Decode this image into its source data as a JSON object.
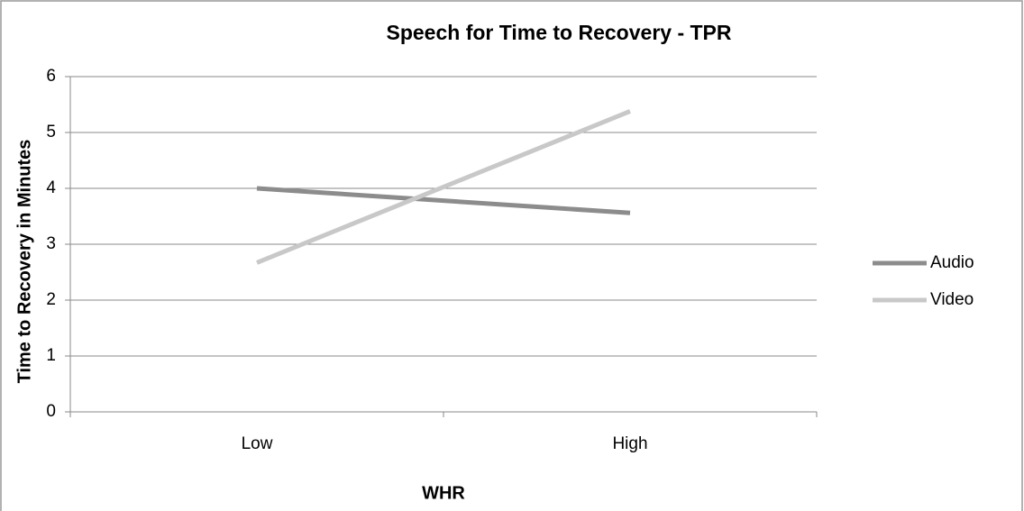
{
  "chart_data": {
    "type": "line",
    "title": "Speech for Time to Recovery - TPR",
    "x_label": "WHR",
    "y_label": "Time to Recovery in Minutes",
    "categories": [
      "Low",
      "High"
    ],
    "series": [
      {
        "name": "Audio",
        "color": "#8c8c8c",
        "values": [
          4.0,
          3.56
        ]
      },
      {
        "name": "Video",
        "color": "#c8c8c8",
        "values": [
          2.67,
          5.38
        ]
      }
    ],
    "ylim": [
      0,
      6
    ],
    "yticks": [
      0,
      1,
      2,
      3,
      4,
      5,
      6
    ],
    "grid": true,
    "legend": "right"
  }
}
